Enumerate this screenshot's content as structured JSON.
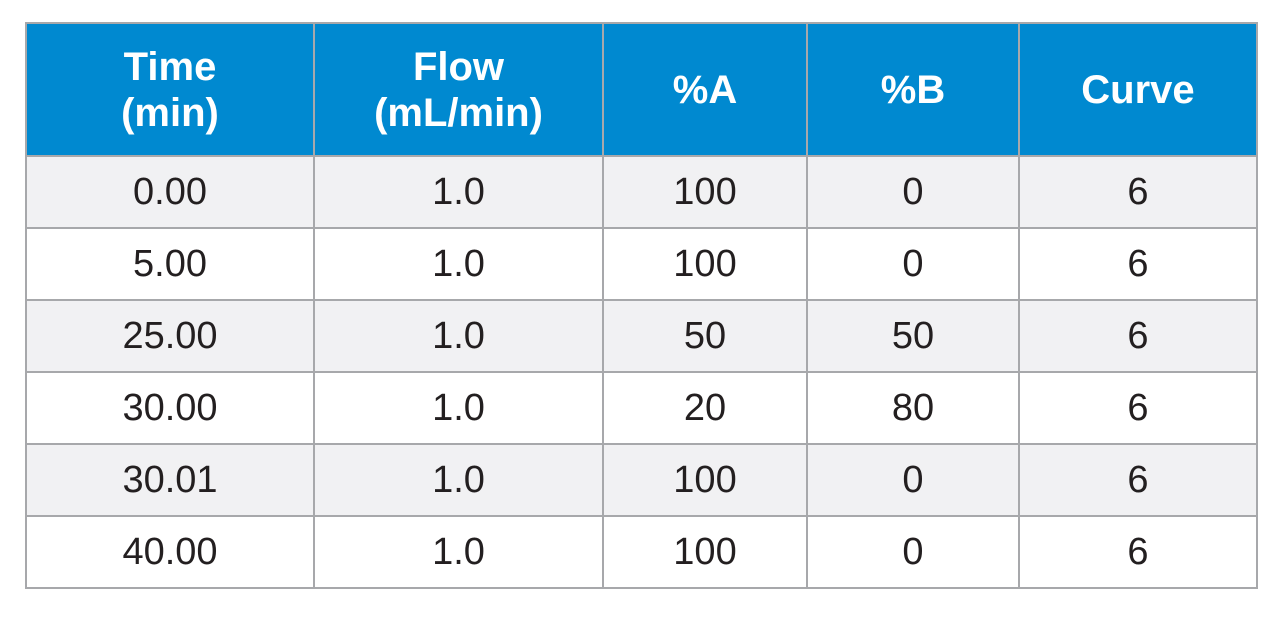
{
  "table": {
    "headers": [
      {
        "lines": [
          "Time",
          "(min)"
        ]
      },
      {
        "lines": [
          "Flow",
          "(mL/min)"
        ]
      },
      {
        "lines": [
          "%A"
        ]
      },
      {
        "lines": [
          "%B"
        ]
      },
      {
        "lines": [
          "Curve"
        ]
      }
    ],
    "rows": [
      [
        "0.00",
        "1.0",
        "100",
        "0",
        "6"
      ],
      [
        "5.00",
        "1.0",
        "100",
        "0",
        "6"
      ],
      [
        "25.00",
        "1.0",
        "50",
        "50",
        "6"
      ],
      [
        "30.00",
        "1.0",
        "20",
        "80",
        "6"
      ],
      [
        "30.01",
        "1.0",
        "100",
        "0",
        "6"
      ],
      [
        "40.00",
        "1.0",
        "100",
        "0",
        "6"
      ]
    ]
  },
  "colors": {
    "header_background": "#0089d0",
    "header_text": "#ffffff",
    "grid_line": "#a7a8ab",
    "stripe_background": "#f1f1f3",
    "body_text": "#231f20"
  }
}
